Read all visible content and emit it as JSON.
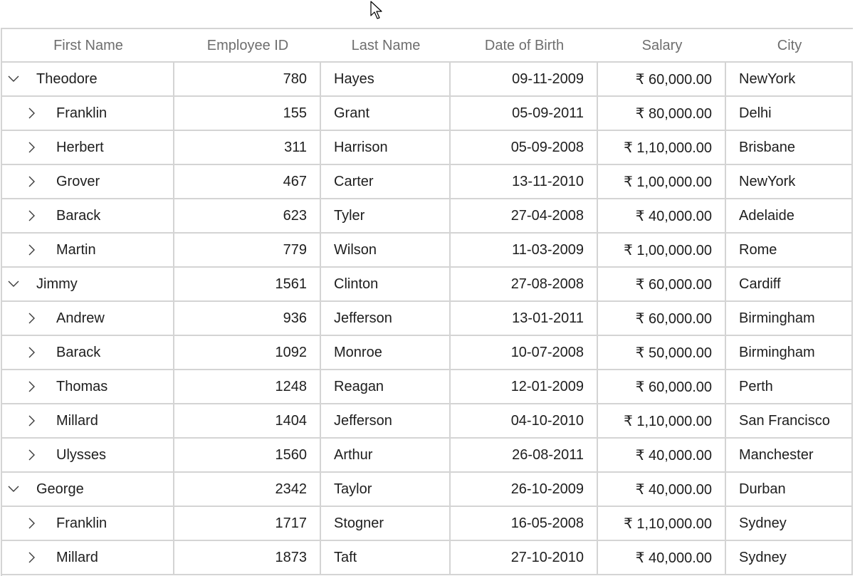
{
  "grid": {
    "columns": [
      "First Name",
      "Employee ID",
      "Last Name",
      "Date of Birth",
      "Salary",
      "City"
    ],
    "rows": [
      {
        "level": "parent",
        "expanded": true,
        "first_name": "Theodore",
        "employee_id": "780",
        "last_name": "Hayes",
        "dob": "09-11-2009",
        "salary": "₹ 60,000.00",
        "city": "NewYork"
      },
      {
        "level": "child",
        "expanded": false,
        "first_name": "Franklin",
        "employee_id": "155",
        "last_name": "Grant",
        "dob": "05-09-2011",
        "salary": "₹ 80,000.00",
        "city": "Delhi"
      },
      {
        "level": "child",
        "expanded": false,
        "first_name": "Herbert",
        "employee_id": "311",
        "last_name": "Harrison",
        "dob": "05-09-2008",
        "salary": "₹ 1,10,000.00",
        "city": "Brisbane"
      },
      {
        "level": "child",
        "expanded": false,
        "first_name": "Grover",
        "employee_id": "467",
        "last_name": "Carter",
        "dob": "13-11-2010",
        "salary": "₹ 1,00,000.00",
        "city": "NewYork"
      },
      {
        "level": "child",
        "expanded": false,
        "first_name": "Barack",
        "employee_id": "623",
        "last_name": "Tyler",
        "dob": "27-04-2008",
        "salary": "₹ 40,000.00",
        "city": "Adelaide"
      },
      {
        "level": "child",
        "expanded": false,
        "first_name": "Martin",
        "employee_id": "779",
        "last_name": "Wilson",
        "dob": "11-03-2009",
        "salary": "₹ 1,00,000.00",
        "city": "Rome"
      },
      {
        "level": "parent",
        "expanded": true,
        "first_name": "Jimmy",
        "employee_id": "1561",
        "last_name": "Clinton",
        "dob": "27-08-2008",
        "salary": "₹ 60,000.00",
        "city": "Cardiff"
      },
      {
        "level": "child",
        "expanded": false,
        "first_name": "Andrew",
        "employee_id": "936",
        "last_name": "Jefferson",
        "dob": "13-01-2011",
        "salary": "₹ 60,000.00",
        "city": "Birmingham"
      },
      {
        "level": "child",
        "expanded": false,
        "first_name": "Barack",
        "employee_id": "1092",
        "last_name": "Monroe",
        "dob": "10-07-2008",
        "salary": "₹ 50,000.00",
        "city": "Birmingham"
      },
      {
        "level": "child",
        "expanded": false,
        "first_name": "Thomas",
        "employee_id": "1248",
        "last_name": "Reagan",
        "dob": "12-01-2009",
        "salary": "₹ 60,000.00",
        "city": "Perth"
      },
      {
        "level": "child",
        "expanded": false,
        "first_name": "Millard",
        "employee_id": "1404",
        "last_name": "Jefferson",
        "dob": "04-10-2010",
        "salary": "₹ 1,10,000.00",
        "city": "San Francisco"
      },
      {
        "level": "child",
        "expanded": false,
        "first_name": "Ulysses",
        "employee_id": "1560",
        "last_name": "Arthur",
        "dob": "26-08-2011",
        "salary": "₹ 40,000.00",
        "city": "Manchester"
      },
      {
        "level": "parent",
        "expanded": true,
        "first_name": "George",
        "employee_id": "2342",
        "last_name": "Taylor",
        "dob": "26-10-2009",
        "salary": "₹ 40,000.00",
        "city": "Durban"
      },
      {
        "level": "child",
        "expanded": false,
        "first_name": "Franklin",
        "employee_id": "1717",
        "last_name": "Stogner",
        "dob": "16-05-2008",
        "salary": "₹ 1,10,000.00",
        "city": "Sydney"
      },
      {
        "level": "child",
        "expanded": false,
        "first_name": "Millard",
        "employee_id": "1873",
        "last_name": "Taft",
        "dob": "27-10-2010",
        "salary": "₹ 40,000.00",
        "city": "Sydney"
      }
    ]
  },
  "colors": {
    "border": "#d4d4d4",
    "header_text": "#6e6e6e",
    "cell_text": "#1e1e1e"
  },
  "icons": {
    "expanded": "chevron-down-icon",
    "collapsed": "chevron-right-icon",
    "cursor": "mouse-pointer-icon"
  }
}
